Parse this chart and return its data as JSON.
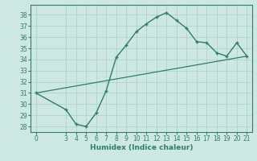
{
  "title": "",
  "xlabel": "Humidex (Indice chaleur)",
  "background_color": "#cce8e0",
  "line_color": "#2e7d6e",
  "grid_color": "#aacfc8",
  "curve1_x": [
    0,
    3,
    4,
    5,
    6,
    7,
    8,
    9,
    10,
    11,
    12,
    13,
    14,
    15,
    16,
    17,
    18,
    19,
    20,
    21
  ],
  "curve1_y": [
    31,
    29.5,
    28.2,
    28.0,
    29.2,
    31.2,
    34.2,
    35.3,
    36.5,
    37.2,
    37.8,
    38.2,
    37.5,
    36.8,
    35.6,
    35.5,
    34.6,
    34.3,
    35.5,
    34.3
  ],
  "curve2_x": [
    0,
    21
  ],
  "curve2_y": [
    31,
    34.3
  ],
  "ylim": [
    27.5,
    38.9
  ],
  "xlim": [
    -0.5,
    21.5
  ],
  "yticks": [
    28,
    29,
    30,
    31,
    32,
    33,
    34,
    35,
    36,
    37,
    38
  ],
  "xticks": [
    0,
    3,
    4,
    5,
    6,
    7,
    8,
    9,
    10,
    11,
    12,
    13,
    14,
    15,
    16,
    17,
    18,
    19,
    20,
    21
  ]
}
